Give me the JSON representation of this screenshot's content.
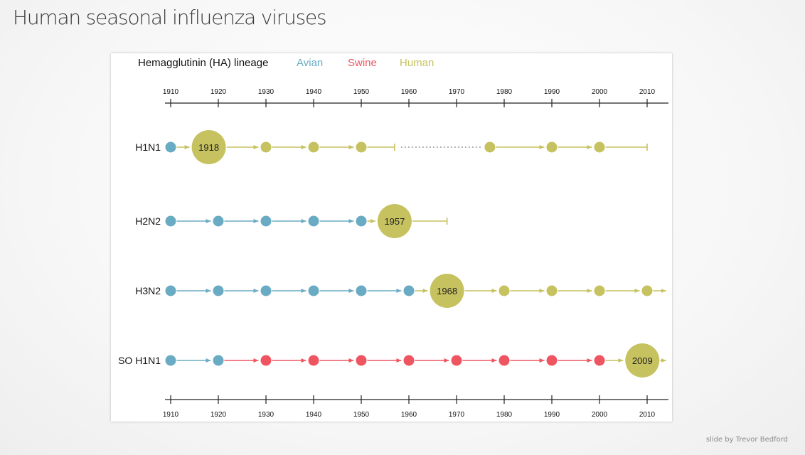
{
  "slide": {
    "title": "Human seasonal influenza viruses",
    "credit": "slide by Trevor Bedford"
  },
  "legend": {
    "heading": "Hemagglutinin (HA) lineage",
    "avian": "Avian",
    "swine": "Swine",
    "human": "Human"
  },
  "colors": {
    "avian": "#6aabc4",
    "swine": "#ef5560",
    "human": "#c6c25f",
    "axis": "#222222",
    "dotted": "#999999"
  },
  "axis": {
    "range": [
      1910,
      2014
    ],
    "ticks": [
      1910,
      1920,
      1930,
      1940,
      1950,
      1960,
      1970,
      1980,
      1990,
      2000,
      2010
    ]
  },
  "chart_data": {
    "type": "timeline",
    "rows": [
      {
        "label": "H1N1",
        "nodes": [
          {
            "year": 1910,
            "lineage": "avian"
          },
          {
            "year": 1918,
            "lineage": "human",
            "pandemic": true,
            "label": "1918"
          },
          {
            "year": 1930,
            "lineage": "human"
          },
          {
            "year": 1940,
            "lineage": "human"
          },
          {
            "year": 1950,
            "lineage": "human"
          },
          {
            "year": 1977,
            "lineage": "human"
          },
          {
            "year": 1990,
            "lineage": "human"
          },
          {
            "year": 2000,
            "lineage": "human"
          }
        ],
        "gap": [
          1957,
          1977
        ],
        "end": 2010,
        "end_style": "bar"
      },
      {
        "label": "H2N2",
        "nodes": [
          {
            "year": 1910,
            "lineage": "avian"
          },
          {
            "year": 1920,
            "lineage": "avian"
          },
          {
            "year": 1930,
            "lineage": "avian"
          },
          {
            "year": 1940,
            "lineage": "avian"
          },
          {
            "year": 1950,
            "lineage": "avian"
          },
          {
            "year": 1957,
            "lineage": "human",
            "pandemic": true,
            "label": "1957"
          }
        ],
        "end": 1968,
        "end_style": "bar"
      },
      {
        "label": "H3N2",
        "nodes": [
          {
            "year": 1910,
            "lineage": "avian"
          },
          {
            "year": 1920,
            "lineage": "avian"
          },
          {
            "year": 1930,
            "lineage": "avian"
          },
          {
            "year": 1940,
            "lineage": "avian"
          },
          {
            "year": 1950,
            "lineage": "avian"
          },
          {
            "year": 1960,
            "lineage": "avian"
          },
          {
            "year": 1968,
            "lineage": "human",
            "pandemic": true,
            "label": "1968"
          },
          {
            "year": 1980,
            "lineage": "human"
          },
          {
            "year": 1990,
            "lineage": "human"
          },
          {
            "year": 2000,
            "lineage": "human"
          },
          {
            "year": 2010,
            "lineage": "human"
          }
        ],
        "end": 2014,
        "end_style": "arrow"
      },
      {
        "label": "SO H1N1",
        "nodes": [
          {
            "year": 1910,
            "lineage": "avian"
          },
          {
            "year": 1920,
            "lineage": "avian"
          },
          {
            "year": 1930,
            "lineage": "swine"
          },
          {
            "year": 1940,
            "lineage": "swine"
          },
          {
            "year": 1950,
            "lineage": "swine"
          },
          {
            "year": 1960,
            "lineage": "swine"
          },
          {
            "year": 1970,
            "lineage": "swine"
          },
          {
            "year": 1980,
            "lineage": "swine"
          },
          {
            "year": 1990,
            "lineage": "swine"
          },
          {
            "year": 2000,
            "lineage": "swine"
          },
          {
            "year": 2009,
            "lineage": "human",
            "pandemic": true,
            "label": "2009"
          }
        ],
        "end": 2014,
        "end_style": "arrow"
      }
    ]
  }
}
